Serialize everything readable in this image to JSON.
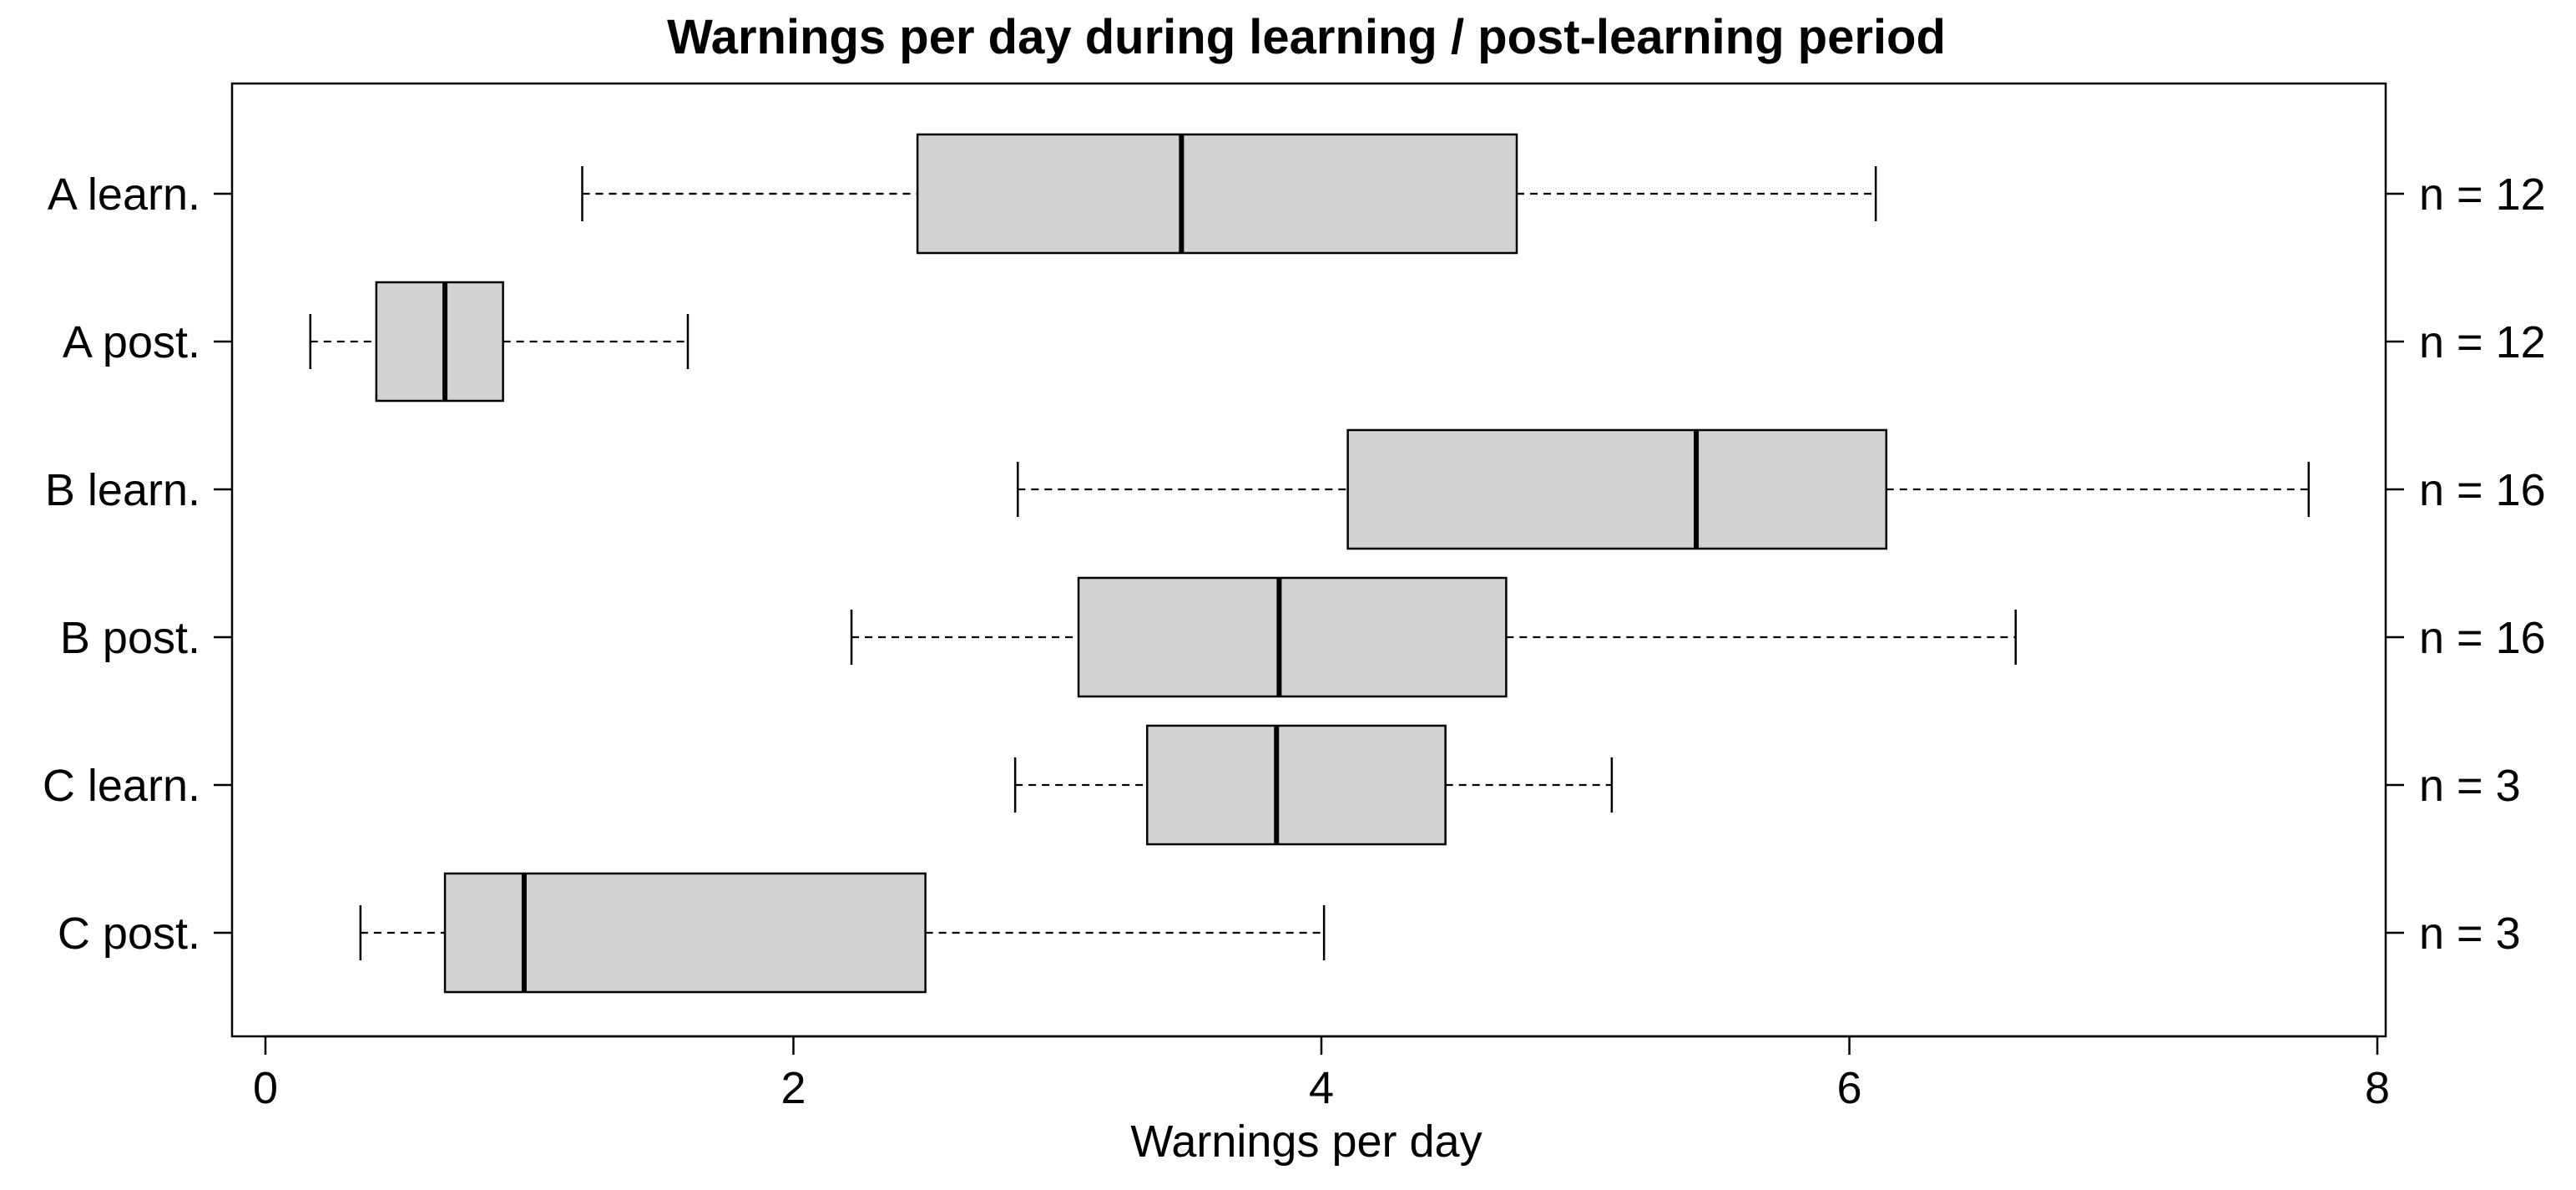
{
  "chart_data": {
    "type": "boxplot",
    "orientation": "horizontal",
    "title": "Warnings per day during learning / post-learning period",
    "xlabel": "Warnings per day",
    "ylabel": "",
    "xlim": [
      0,
      8
    ],
    "x_ticks": [
      0,
      2,
      4,
      6,
      8
    ],
    "grid": false,
    "box_fill": "#d3d3d3",
    "groups": [
      {
        "label": "A learn.",
        "n_label": "n = 12",
        "min": 1.2,
        "q1": 2.47,
        "median": 3.47,
        "q3": 4.74,
        "max": 6.1
      },
      {
        "label": "A post.",
        "n_label": "n = 12",
        "min": 0.17,
        "q1": 0.42,
        "median": 0.68,
        "q3": 0.9,
        "max": 1.6
      },
      {
        "label": "B learn.",
        "n_label": "n = 16",
        "min": 2.85,
        "q1": 4.1,
        "median": 5.42,
        "q3": 6.14,
        "max": 7.74
      },
      {
        "label": "B post.",
        "n_label": "n = 16",
        "min": 2.22,
        "q1": 3.08,
        "median": 3.84,
        "q3": 4.7,
        "max": 6.63
      },
      {
        "label": "C learn.",
        "n_label": "n = 3",
        "min": 2.84,
        "q1": 3.34,
        "median": 3.83,
        "q3": 4.47,
        "max": 5.1
      },
      {
        "label": "C post.",
        "n_label": "n = 3",
        "min": 0.36,
        "q1": 0.68,
        "median": 0.98,
        "q3": 2.5,
        "max": 4.01
      }
    ]
  }
}
